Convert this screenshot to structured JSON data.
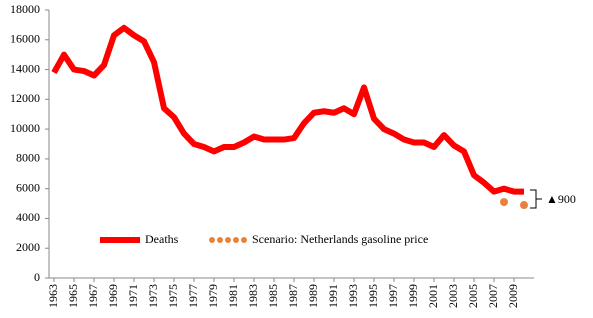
{
  "chart_data": {
    "type": "line",
    "x": [
      1963,
      1964,
      1965,
      1966,
      1967,
      1968,
      1969,
      1970,
      1971,
      1972,
      1973,
      1974,
      1975,
      1976,
      1977,
      1978,
      1979,
      1980,
      1981,
      1982,
      1983,
      1984,
      1985,
      1986,
      1987,
      1988,
      1989,
      1990,
      1991,
      1992,
      1993,
      1994,
      1995,
      1996,
      1997,
      1998,
      1999,
      2000,
      2001,
      2002,
      2003,
      2004,
      2005,
      2006,
      2007,
      2008,
      2009,
      2010
    ],
    "series": [
      {
        "name": "Deaths",
        "color": "#ff0000",
        "style": "line",
        "values": [
          13800,
          15000,
          14000,
          13900,
          13600,
          14300,
          16300,
          16800,
          16300,
          15900,
          14500,
          11400,
          10800,
          9700,
          9000,
          8800,
          8500,
          8800,
          8800,
          9100,
          9500,
          9300,
          9300,
          9300,
          9400,
          10400,
          11100,
          11200,
          11100,
          11400,
          11000,
          12800,
          10700,
          10000,
          9700,
          9300,
          9100,
          9100,
          8800,
          9600,
          8900,
          8500,
          6900,
          6400,
          5800,
          6000,
          5800,
          5800
        ]
      },
      {
        "name": "Scenario: Netherlands gasoline price",
        "color": "#e8823a",
        "style": "dots",
        "values": [
          null,
          null,
          null,
          null,
          null,
          null,
          null,
          null,
          null,
          null,
          null,
          null,
          null,
          null,
          null,
          null,
          null,
          null,
          null,
          null,
          null,
          null,
          null,
          null,
          null,
          null,
          null,
          null,
          null,
          null,
          null,
          null,
          null,
          null,
          null,
          null,
          null,
          null,
          null,
          null,
          null,
          null,
          null,
          null,
          null,
          5100,
          null,
          4900
        ]
      }
    ],
    "xlim": [
      1962.5,
      2011
    ],
    "xticks": [
      1963,
      1965,
      1967,
      1969,
      1971,
      1973,
      1975,
      1977,
      1979,
      1981,
      1983,
      1985,
      1987,
      1989,
      1991,
      1993,
      1995,
      1997,
      1999,
      2001,
      2003,
      2005,
      2007,
      2009
    ],
    "ylim": [
      0,
      18000
    ],
    "yticks": [
      0,
      2000,
      4000,
      6000,
      8000,
      10000,
      12000,
      14000,
      16000,
      18000
    ],
    "annotation": "▲900"
  }
}
